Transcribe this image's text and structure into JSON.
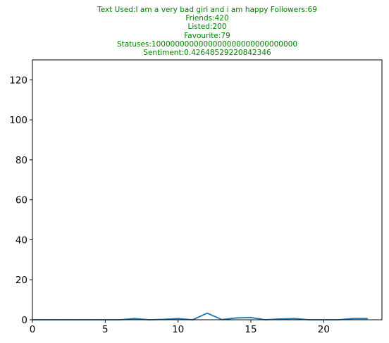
{
  "chart_data": {
    "type": "line",
    "title_lines": [
      "Text Used:I am a very bad girl and i am happy Followers:69",
      "Friends:420",
      "Listed:200",
      "Favourite:79",
      "Statuses:1000000000000000000000000000000",
      "Sentiment:0.42648529220842346"
    ],
    "title_color": "#008000",
    "xlabel": "",
    "ylabel": "",
    "xlim": [
      0,
      24
    ],
    "ylim": [
      0,
      130
    ],
    "x_ticks": [
      0,
      5,
      10,
      15,
      20
    ],
    "y_ticks": [
      0,
      20,
      40,
      60,
      80,
      100,
      120
    ],
    "grid": false,
    "series": [
      {
        "color": "#1f77b4",
        "x": [
          0,
          1,
          2,
          3,
          4,
          5,
          6,
          7,
          8,
          9,
          10,
          11,
          12,
          13,
          14,
          15,
          16,
          17,
          18,
          19,
          20,
          21,
          22,
          23
        ],
        "y": [
          0,
          0,
          0,
          0,
          0,
          0,
          0,
          0.6,
          0,
          0.2,
          0.6,
          0,
          3.3,
          0.1,
          0.9,
          1.1,
          0,
          0.4,
          0.6,
          0,
          0,
          0,
          0.6,
          0.6
        ]
      }
    ]
  }
}
